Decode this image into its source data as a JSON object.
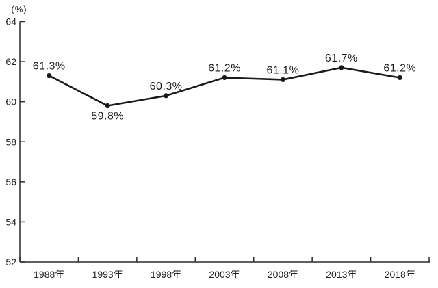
{
  "chart_data": {
    "type": "line",
    "title": "",
    "xlabel": "",
    "ylabel": "(%)",
    "categories": [
      "1988年",
      "1993年",
      "1998年",
      "2003年",
      "2008年",
      "2013年",
      "2018年"
    ],
    "values": [
      61.3,
      59.8,
      60.3,
      61.2,
      61.1,
      61.7,
      61.2
    ],
    "point_labels": [
      "61.3%",
      "59.8%",
      "60.3%",
      "61.2%",
      "61.1%",
      "61.7%",
      "61.2%"
    ],
    "label_positions": [
      "above",
      "below",
      "above",
      "above",
      "above",
      "above",
      "above"
    ],
    "ylim": [
      52,
      64
    ],
    "yticks": [
      52,
      54,
      56,
      58,
      60,
      62,
      64
    ],
    "grid": false,
    "legend": false,
    "line_color": "#1a1a1a",
    "axis_color": "#2a2a2a",
    "marker": "circle",
    "background": "#ffffff"
  }
}
